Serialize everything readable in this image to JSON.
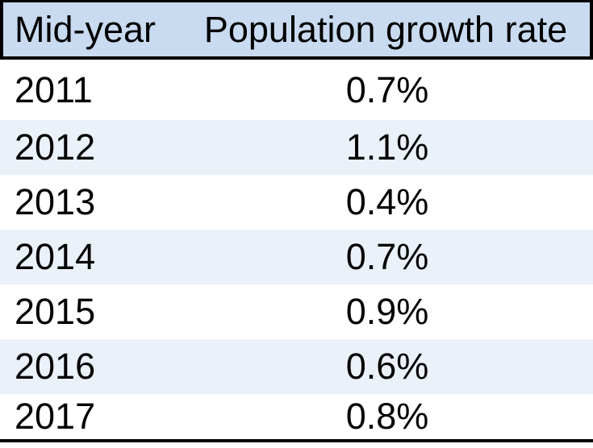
{
  "header": {
    "year_col": "Mid-year",
    "rate_col": "Population growth rate"
  },
  "rows": [
    {
      "year": "2011",
      "rate": "0.7%"
    },
    {
      "year": "2012",
      "rate": "1.1%"
    },
    {
      "year": "2013",
      "rate": "0.4%"
    },
    {
      "year": "2014",
      "rate": "0.7%"
    },
    {
      "year": "2015",
      "rate": "0.9%"
    },
    {
      "year": "2016",
      "rate": "0.6%"
    },
    {
      "year": "2017",
      "rate": "0.8%"
    }
  ],
  "colors": {
    "header_bg": "#c9dbf0",
    "stripe_bg": "#eaf1f9",
    "border": "#000000",
    "text": "#000000"
  },
  "chart_data": {
    "type": "table",
    "title": "",
    "columns": [
      "Mid-year",
      "Population growth rate"
    ],
    "categories": [
      "2011",
      "2012",
      "2013",
      "2014",
      "2015",
      "2016",
      "2017"
    ],
    "values": [
      0.7,
      1.1,
      0.4,
      0.7,
      0.9,
      0.6,
      0.8
    ],
    "value_unit": "%",
    "rows": [
      [
        "2011",
        "0.7%"
      ],
      [
        "2012",
        "1.1%"
      ],
      [
        "2013",
        "0.4%"
      ],
      [
        "2014",
        "0.7%"
      ],
      [
        "2015",
        "0.9%"
      ],
      [
        "2016",
        "0.6%"
      ],
      [
        "2017",
        "0.8%"
      ]
    ],
    "layout": {
      "striped": true,
      "header_fill": "#c9dbf0",
      "stripe_fill": "#eaf1f9",
      "grid": false
    }
  }
}
